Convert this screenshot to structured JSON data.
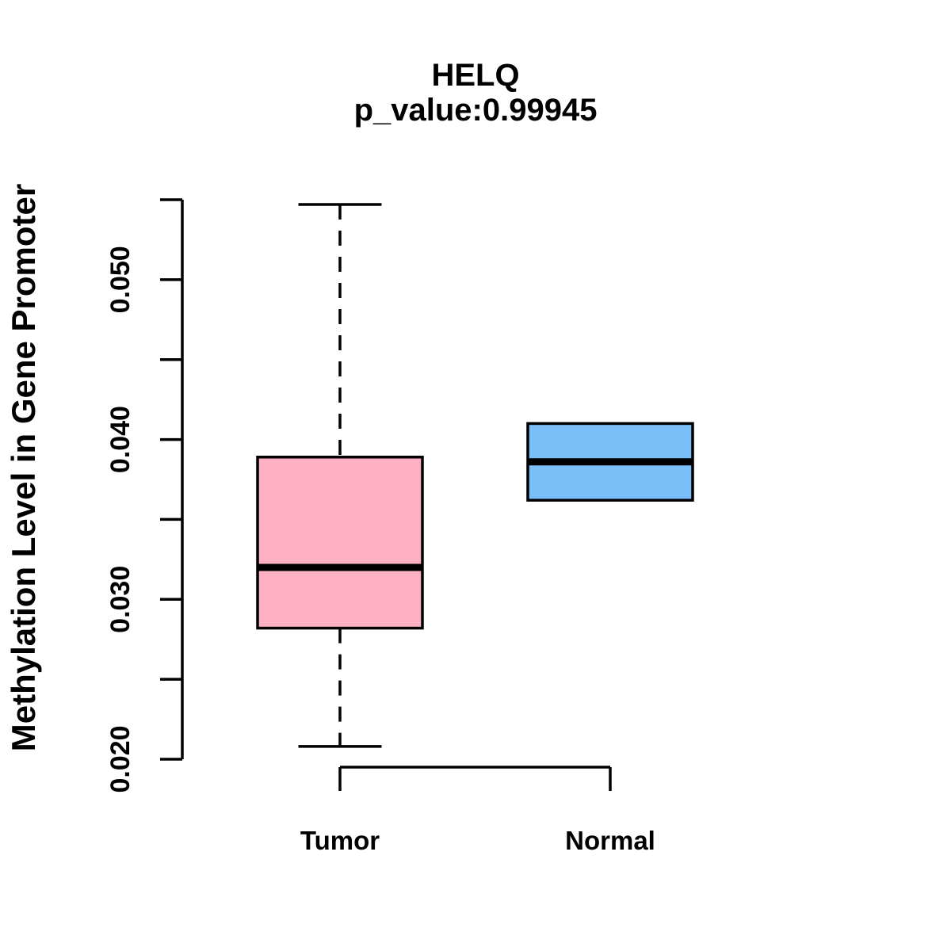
{
  "figure": {
    "title": "HELQ",
    "subtitle": "p_value:0.99945",
    "y_axis_label": "Methylation Level in Gene Promoter"
  },
  "colors": {
    "background": "#FFFFFF",
    "stroke": "#000000",
    "tumor_fill": "#FCB0C2",
    "normal_fill": "#7ABFF7"
  },
  "chart_data": {
    "type": "boxplot",
    "title": "HELQ",
    "subtitle": "p_value:0.99945",
    "xlabel": "",
    "ylabel": "Methylation Level in Gene Promoter",
    "categories": [
      "Tumor",
      "Normal"
    ],
    "ylim": [
      0.02,
      0.055
    ],
    "y_ticks": [
      0.02,
      0.025,
      0.03,
      0.035,
      0.04,
      0.045,
      0.05,
      0.055
    ],
    "y_tick_labels": [
      "0.020",
      "0.030",
      "0.040",
      "0.050"
    ],
    "grid": false,
    "legend": "none",
    "series": [
      {
        "name": "Tumor",
        "color": "#FCB0C2",
        "whisker_low": 0.0208,
        "q1": 0.0282,
        "median": 0.032,
        "q3": 0.0389,
        "whisker_high": 0.0547
      },
      {
        "name": "Normal",
        "color": "#7ABFF7",
        "whisker_low": 0.0362,
        "q1": 0.0362,
        "median": 0.0386,
        "q3": 0.041,
        "whisker_high": 0.041
      }
    ]
  }
}
